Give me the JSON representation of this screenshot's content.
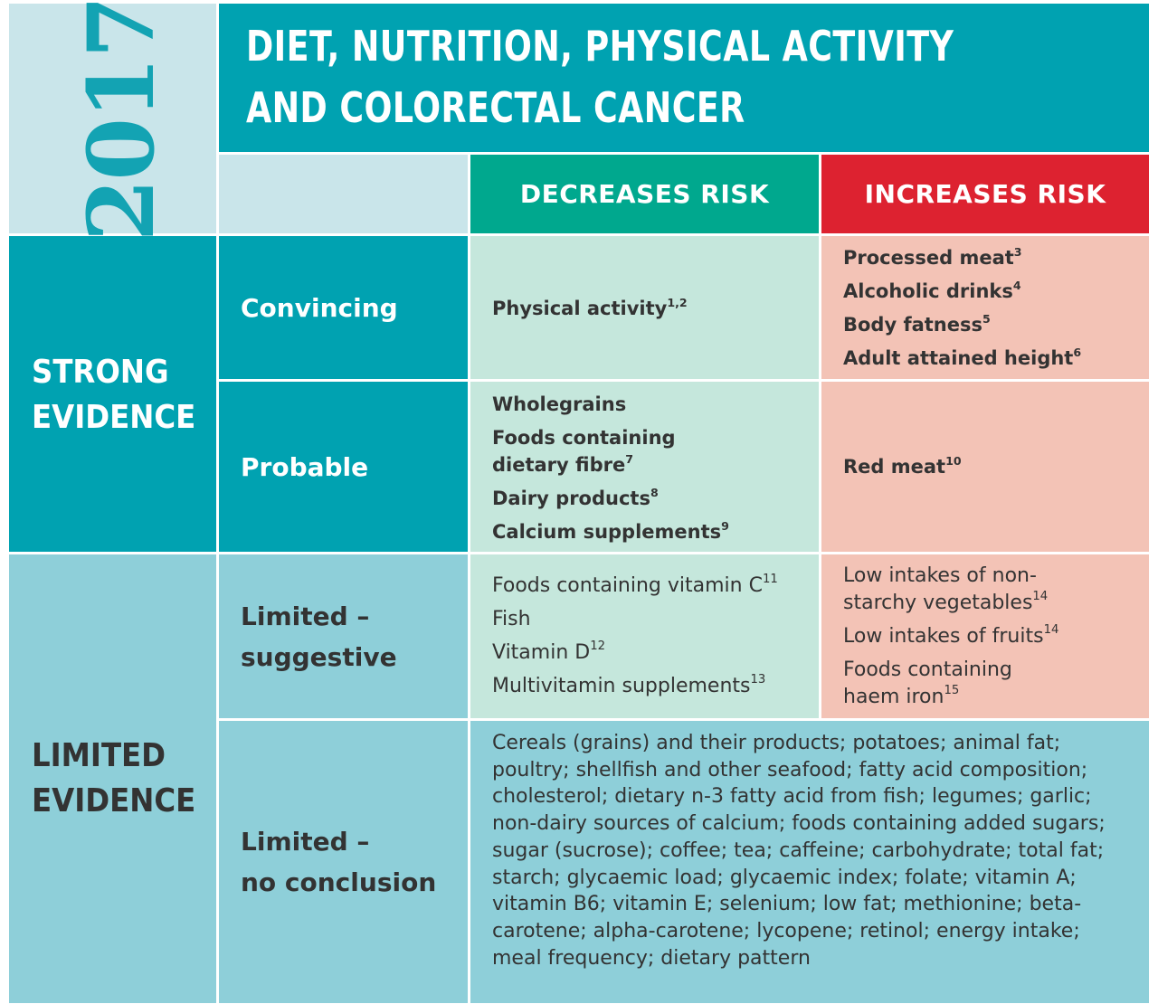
{
  "year": "2017",
  "title": {
    "line1": "DIET, NUTRITION, PHYSICAL ACTIVITY",
    "line2": "AND COLORECTAL CANCER"
  },
  "headers": {
    "decreases": "DECREASES RISK",
    "increases": "INCREASES RISK"
  },
  "colors": {
    "teal": "#00a2b1",
    "light_teal": "#c9e5ea",
    "mid_blue": "#8ecfd9",
    "green": "#00a88e",
    "red": "#dd2230",
    "mint": "#c5e7dc",
    "salmon": "#f3c3b6"
  },
  "evidence": {
    "strong": "STRONG\nEVIDENCE",
    "limited": "LIMITED\nEVIDENCE"
  },
  "grades": {
    "convincing": "Convincing",
    "probable": "Probable",
    "suggestive": "Limited –\nsuggestive",
    "no_conclusion": "Limited –\nno conclusion"
  },
  "convincing": {
    "decreases": [
      {
        "text": "Physical activity",
        "sup": "1,2"
      }
    ],
    "increases": [
      {
        "text": "Processed meat",
        "sup": "3"
      },
      {
        "text": "Alcoholic drinks",
        "sup": "4"
      },
      {
        "text": "Body fatness",
        "sup": "5"
      },
      {
        "text": "Adult attained height",
        "sup": "6"
      }
    ]
  },
  "probable": {
    "decreases": [
      {
        "text": "Wholegrains",
        "sup": ""
      },
      {
        "text": "Foods containing\ndietary fibre",
        "sup": "7"
      },
      {
        "text": "Dairy products",
        "sup": "8"
      },
      {
        "text": "Calcium supplements",
        "sup": "9"
      }
    ],
    "increases": [
      {
        "text": "Red meat",
        "sup": "10"
      }
    ]
  },
  "suggestive": {
    "decreases": [
      {
        "text": "Foods containing vitamin C",
        "sup": "11"
      },
      {
        "text": "Fish",
        "sup": ""
      },
      {
        "text": "Vitamin D",
        "sup": "12"
      },
      {
        "text": "Multivitamin supplements",
        "sup": "13"
      }
    ],
    "increases": [
      {
        "text": "Low intakes of non-\nstarchy vegetables",
        "sup": "14"
      },
      {
        "text": "Low intakes of fruits",
        "sup": "14"
      },
      {
        "text": "Foods containing\nhaem iron",
        "sup": "15"
      }
    ]
  },
  "no_conclusion_text": "Cereals (grains) and their products; potatoes; animal fat; poultry; shellfish and other seafood; fatty acid composition; cholesterol; dietary n-3 fatty acid from fish; legumes; garlic; non-dairy sources of calcium; foods containing added sugars; sugar (sucrose); coffee; tea; caffeine; carbohydrate; total fat; starch; glycaemic load; glycaemic index; folate; vitamin A; vitamin B6; vitamin E; selenium; low fat; methionine; beta-carotene; alpha-carotene; lycopene; retinol; energy intake; meal frequency; dietary pattern"
}
